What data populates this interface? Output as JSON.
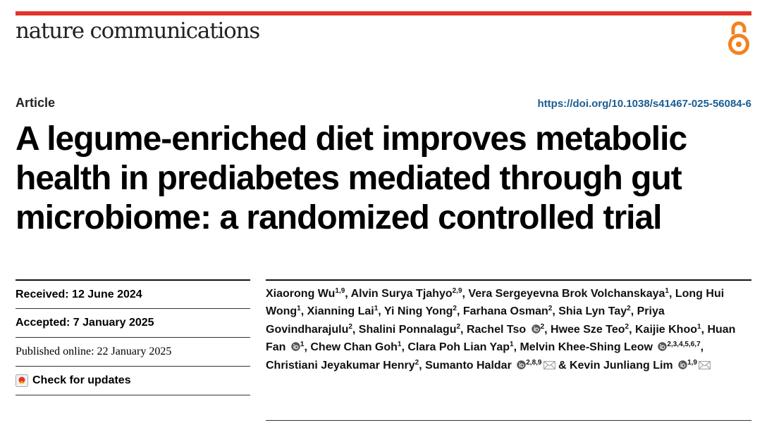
{
  "journal": {
    "name": "nature communications",
    "accent": "#e4332b"
  },
  "header": {
    "article_type": "Article",
    "doi": "https://doi.org/10.1038/s41467-025-56084-6"
  },
  "title": {
    "line1": "A legume-enriched diet improves metabolic",
    "line2": "health in prediabetes mediated through gut",
    "line3": "microbiome: a randomized controlled trial"
  },
  "meta": {
    "received": "Received: 12 June 2024",
    "accepted": "Accepted: 7 January 2025",
    "published": "Published online: 22 January 2025",
    "check_updates": "Check for updates"
  },
  "authors": [
    {
      "name": "Xiaorong Wu",
      "aff": "1,9",
      "sep": ", "
    },
    {
      "name": "Alvin Surya Tjahyo",
      "aff": "2,9",
      "sep": ", "
    },
    {
      "name": "Vera Sergeyevna Brok Volchanskaya",
      "aff": "1",
      "sep": ", "
    },
    {
      "name": "Long Hui Wong",
      "aff": "1",
      "sep": ", "
    },
    {
      "name": "Xianning Lai",
      "aff": "1",
      "sep": ", "
    },
    {
      "name": "Yi Ning Yong",
      "aff": "2",
      "sep": ", "
    },
    {
      "name": "Farhana Osman",
      "aff": "2",
      "sep": ", "
    },
    {
      "name": "Shia Lyn Tay",
      "aff": "2",
      "sep": ", "
    },
    {
      "name": "Priya Govindharajulu",
      "aff": "2",
      "sep": ", "
    },
    {
      "name": "Shalini Ponnalagu",
      "aff": "2",
      "sep": ", "
    },
    {
      "name": "Rachel Tso",
      "aff": "2",
      "sep": ", ",
      "orcid": true
    },
    {
      "name": "Hwee Sze Teo",
      "aff": "2",
      "sep": ", "
    },
    {
      "name": "Kaijie Khoo",
      "aff": "1",
      "sep": ", "
    },
    {
      "name": "Huan Fan",
      "aff": "1",
      "sep": ", ",
      "orcid": true
    },
    {
      "name": "Chew Chan Goh",
      "aff": "1",
      "sep": ", "
    },
    {
      "name": "Clara Poh Lian Yap",
      "aff": "1",
      "sep": ", "
    },
    {
      "name": "Melvin Khee-Shing Leow",
      "aff": "2,3,4,5,6,7",
      "sep": ", ",
      "orcid": true
    },
    {
      "name": "Christiani Jeyakumar Henry",
      "aff": "2",
      "sep": ", "
    },
    {
      "name": "Sumanto Haldar",
      "aff": "2,8,9",
      "sep": " & ",
      "orcid": true,
      "mail": true
    },
    {
      "name": "Kevin Junliang Lim",
      "aff": "1,9",
      "sep": "",
      "orcid": true,
      "mail": true
    }
  ],
  "icons": {
    "open_access": "open-access-icon",
    "orcid": "orcid-icon",
    "mail": "envelope-icon",
    "check_updates": "check-for-updates-icon"
  },
  "colors": {
    "open_access": "#f48120",
    "doi_link": "#1a5d92",
    "orcid": "#555555"
  }
}
